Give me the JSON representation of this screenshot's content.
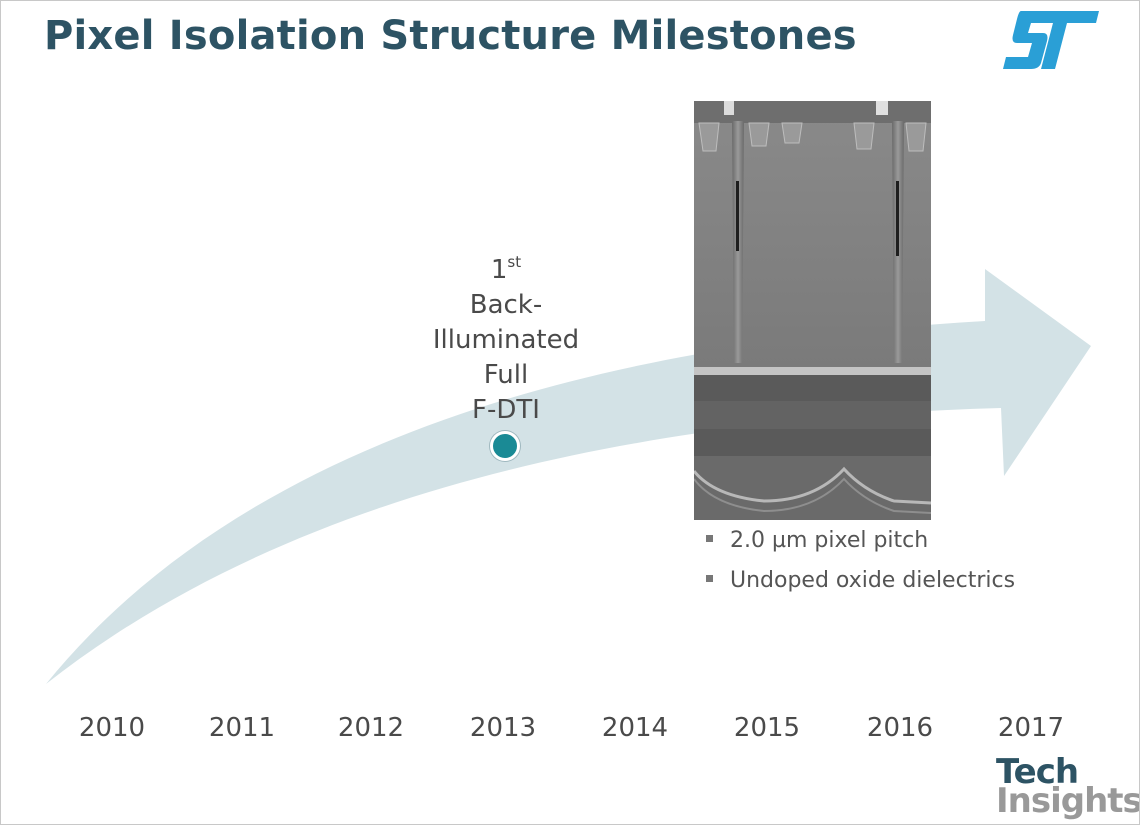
{
  "title": "Pixel Isolation Structure Milestones",
  "logos": {
    "st": "ST",
    "techinsights_line1": "Tech",
    "techinsights_line2": "Insights"
  },
  "milestone": {
    "number": "1",
    "suffix": "st",
    "lines": [
      "Back-",
      "Illuminated",
      "Full",
      "F-DTI"
    ]
  },
  "bullets": [
    "2.0 µm pixel pitch",
    "Undoped oxide dielectrics"
  ],
  "years": [
    "2010",
    "2011",
    "2012",
    "2013",
    "2014",
    "2015",
    "2016",
    "2017"
  ],
  "colors": {
    "title": "#2d5364",
    "arrow": "#d3e2e6",
    "marker": "#1a8a95",
    "st_logo": "#2a9fd6"
  }
}
